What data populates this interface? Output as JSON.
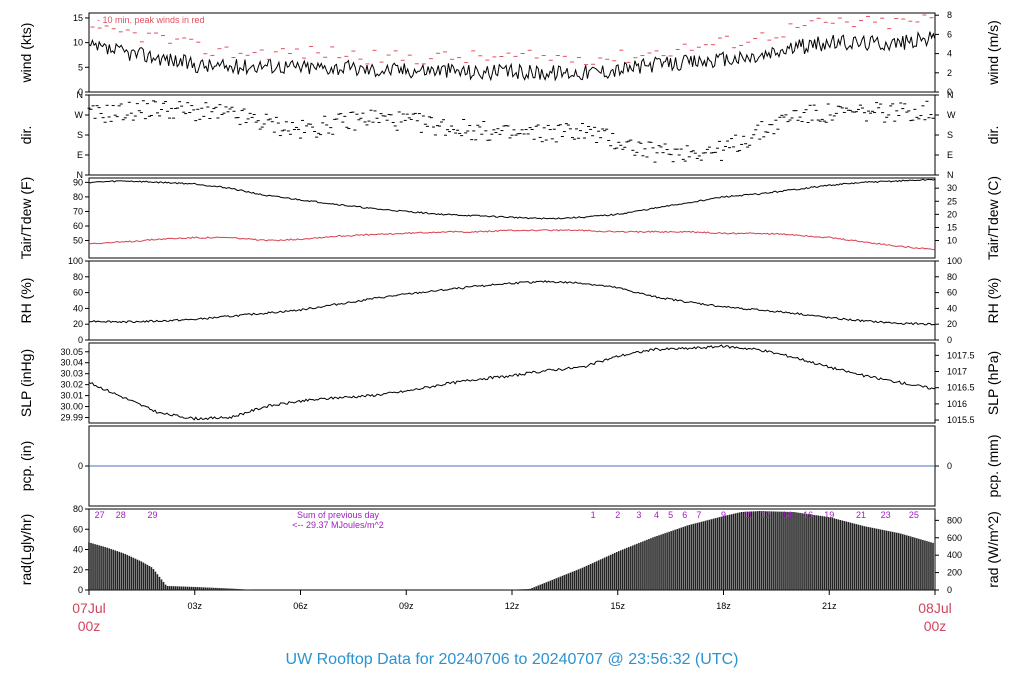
{
  "title": "UW Rooftop Data for 20240706  to  20240707 @ 23:56:32  (UTC)",
  "colors": {
    "title": "#2a93d1",
    "date": "#d0455f",
    "peak": "#e05060",
    "tdew": "#d9404e",
    "pcp": "#4f6fb8",
    "annot": "#a020c0",
    "line": "#000000"
  },
  "x_axis": {
    "range_hours": [
      0,
      24
    ],
    "ticks": [
      {
        "h": 3,
        "label": "03z"
      },
      {
        "h": 6,
        "label": "06z"
      },
      {
        "h": 9,
        "label": "09z"
      },
      {
        "h": 12,
        "label": "12z"
      },
      {
        "h": 15,
        "label": "15z"
      },
      {
        "h": 18,
        "label": "18z"
      },
      {
        "h": 21,
        "label": "21z"
      }
    ],
    "start_date": "07Jul",
    "start_time": "00z",
    "end_date": "08Jul",
    "end_time": "00z"
  },
  "chart_data": [
    {
      "type": "line",
      "left_label": "wind (kts)",
      "right_label": "wind (m/s)",
      "ylim": [
        0,
        16
      ],
      "left_ticks": [
        "0",
        "5",
        "10",
        "15"
      ],
      "right_ticks": [
        "0",
        "2",
        "4",
        "6",
        "8"
      ],
      "annotation": "- 10 min. peak winds in red",
      "series": [
        {
          "color": "#000000",
          "x": [
            0,
            1,
            2,
            3,
            4,
            5,
            6,
            7,
            8,
            9,
            10,
            11,
            12,
            13,
            14,
            15,
            16,
            17,
            18,
            19,
            20,
            21,
            22,
            23,
            24
          ],
          "values": [
            9,
            8,
            7,
            5.5,
            5,
            5.5,
            5,
            5,
            4.5,
            4.5,
            4.5,
            4,
            4,
            4,
            4,
            4.5,
            5.5,
            6,
            6.5,
            7,
            9,
            10,
            10,
            10,
            11
          ]
        },
        {
          "color": "#e05060",
          "x": [
            0,
            1,
            2,
            3,
            4,
            5,
            6,
            7,
            8,
            9,
            10,
            11,
            12,
            13,
            14,
            15,
            16,
            17,
            18,
            19,
            20,
            21,
            22,
            23,
            24
          ],
          "values": [
            12,
            12,
            11,
            9,
            8,
            8,
            8,
            8,
            7,
            7,
            7,
            7,
            7,
            7,
            7,
            7,
            8,
            9,
            10,
            11,
            13,
            14,
            14,
            14,
            15
          ]
        }
      ]
    },
    {
      "type": "scatter",
      "left_label": "dir.",
      "right_label": "dir.",
      "ylim": [
        0,
        360
      ],
      "left_ticks": [
        "N",
        "E",
        "S",
        "W",
        "N"
      ],
      "right_ticks": [
        "N",
        "E",
        "S",
        "W",
        "N"
      ],
      "series": [
        {
          "color": "#000000",
          "x": [
            0,
            2,
            4,
            6,
            8,
            10,
            12,
            14,
            16,
            18,
            20,
            22,
            24
          ],
          "values": [
            270,
            300,
            270,
            200,
            260,
            220,
            180,
            200,
            100,
            110,
            270,
            280,
            290
          ]
        }
      ]
    },
    {
      "type": "line",
      "left_label": "Tair/Tdew (F)",
      "right_label": "Tair/Tdew (C)",
      "ylim": [
        38,
        93
      ],
      "left_ticks": [
        "50",
        "60",
        "70",
        "80",
        "90"
      ],
      "right_ticks": [
        "10",
        "15",
        "20",
        "25",
        "30"
      ],
      "series": [
        {
          "color": "#000000",
          "x": [
            0,
            1,
            2,
            3,
            4,
            5,
            6,
            7,
            8,
            9,
            10,
            11,
            12,
            13,
            14,
            15,
            16,
            17,
            18,
            19,
            20,
            21,
            22,
            23,
            24
          ],
          "values": [
            90,
            91,
            90,
            89,
            86,
            81,
            78,
            75,
            72,
            70,
            68,
            67,
            66,
            65,
            66,
            68,
            72,
            76,
            80,
            82,
            85,
            88,
            90,
            91,
            92
          ]
        },
        {
          "color": "#d9404e",
          "x": [
            0,
            1,
            2,
            3,
            4,
            5,
            6,
            7,
            8,
            9,
            10,
            11,
            12,
            13,
            14,
            15,
            16,
            17,
            18,
            19,
            20,
            21,
            22,
            23,
            24
          ],
          "values": [
            48,
            49,
            51,
            52,
            52,
            50,
            51,
            53,
            54,
            55,
            56,
            56,
            57,
            57,
            57,
            56,
            56,
            56,
            55,
            55,
            54,
            52,
            49,
            46,
            44
          ]
        }
      ]
    },
    {
      "type": "line",
      "left_label": "RH (%)",
      "right_label": "RH (%)",
      "ylim": [
        0,
        100
      ],
      "left_ticks": [
        "0",
        "20",
        "40",
        "60",
        "80",
        "100"
      ],
      "right_ticks": [
        "0",
        "20",
        "40",
        "60",
        "80",
        "100"
      ],
      "series": [
        {
          "color": "#000000",
          "x": [
            0,
            1,
            2,
            3,
            4,
            5,
            6,
            7,
            8,
            9,
            10,
            11,
            12,
            13,
            14,
            15,
            16,
            17,
            18,
            19,
            20,
            21,
            22,
            23,
            24
          ],
          "values": [
            24,
            23,
            24,
            26,
            30,
            34,
            38,
            45,
            52,
            58,
            63,
            68,
            72,
            74,
            72,
            66,
            55,
            48,
            42,
            38,
            34,
            28,
            24,
            21,
            20
          ]
        }
      ]
    },
    {
      "type": "line",
      "left_label": "SLP (inHg)",
      "right_label": "SLP (hPa)",
      "ylim": [
        29.985,
        30.058
      ],
      "left_ticks": [
        "29.99",
        "30.00",
        "30.01",
        "30.02",
        "30.03",
        "30.04",
        "30.05"
      ],
      "right_ticks": [
        "1015.5",
        "1016",
        "1016.5",
        "1017",
        "1017.5"
      ],
      "series": [
        {
          "color": "#000000",
          "x": [
            0,
            1,
            2,
            3,
            4,
            5,
            6,
            7,
            8,
            9,
            10,
            11,
            12,
            13,
            14,
            15,
            16,
            17,
            18,
            19,
            20,
            21,
            22,
            23,
            24
          ],
          "values": [
            30.022,
            30.008,
            29.994,
            29.989,
            29.99,
            30.0,
            30.005,
            30.008,
            30.01,
            30.014,
            30.02,
            30.025,
            30.028,
            30.033,
            30.036,
            30.046,
            30.052,
            30.053,
            30.055,
            30.052,
            30.045,
            30.036,
            30.028,
            30.022,
            30.016
          ]
        }
      ]
    },
    {
      "type": "line",
      "left_label": "pcp. (in)",
      "right_label": "pcp. (mm)",
      "ylim": [
        -1,
        1
      ],
      "left_ticks": [
        "0"
      ],
      "right_ticks": [
        "0"
      ],
      "series": [
        {
          "color": "#4f6fb8",
          "x": [
            0,
            24
          ],
          "values": [
            0,
            0
          ]
        }
      ]
    },
    {
      "type": "bar",
      "left_label": "rad(Lgly/hr)",
      "right_label": "rad (W/m^2)",
      "ylim": [
        0,
        80
      ],
      "left_ticks": [
        "0",
        "20",
        "40",
        "60",
        "80"
      ],
      "right_ticks": [
        "0",
        "200",
        "400",
        "600",
        "800"
      ],
      "annotation_1": "Sum of previous day",
      "annotation_2": "<-- 29.37 MJoules/m^2",
      "x": [
        0,
        0.5,
        1,
        1.5,
        1.8,
        2.2,
        3,
        4,
        4.7,
        11.7,
        12.5,
        13,
        14,
        15,
        16,
        17,
        18,
        18.5,
        19,
        20,
        21,
        22,
        23,
        24
      ],
      "values": [
        47,
        42,
        36,
        28,
        22,
        4,
        3,
        1.5,
        0,
        0,
        1,
        8,
        22,
        38,
        52,
        64,
        73,
        77,
        78,
        77,
        72,
        63,
        56,
        46
      ],
      "count_labels": [
        {
          "h": 0.3,
          "label": "27"
        },
        {
          "h": 0.9,
          "label": "28"
        },
        {
          "h": 1.8,
          "label": "29"
        },
        {
          "h": 14.3,
          "label": "1"
        },
        {
          "h": 15.0,
          "label": "2"
        },
        {
          "h": 15.6,
          "label": "3"
        },
        {
          "h": 16.1,
          "label": "4"
        },
        {
          "h": 16.5,
          "label": "5"
        },
        {
          "h": 16.9,
          "label": "6"
        },
        {
          "h": 17.3,
          "label": "7"
        },
        {
          "h": 18.0,
          "label": "9"
        },
        {
          "h": 18.7,
          "label": "11"
        },
        {
          "h": 19.2,
          "label": "12"
        },
        {
          "h": 19.8,
          "label": "14"
        },
        {
          "h": 20.4,
          "label": "16"
        },
        {
          "h": 21.0,
          "label": "19"
        },
        {
          "h": 21.9,
          "label": "21"
        },
        {
          "h": 22.6,
          "label": "23"
        },
        {
          "h": 23.4,
          "label": "25"
        }
      ]
    }
  ]
}
